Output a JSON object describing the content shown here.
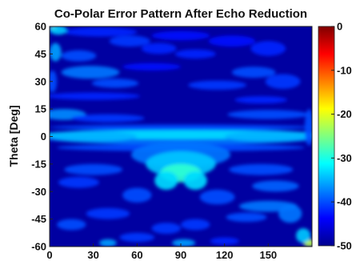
{
  "chart_data": {
    "type": "heatmap",
    "title": "Co-Polar Error Pattern After Echo Reduction",
    "xlabel": "",
    "ylabel": "Theta [Deg]",
    "xlim": [
      0,
      180
    ],
    "ylim": [
      -60,
      60
    ],
    "xticks": [
      "0",
      "30",
      "60",
      "90",
      "120",
      "150"
    ],
    "yticks": [
      "60",
      "45",
      "30",
      "15",
      "0",
      "-15",
      "-30",
      "-45",
      "-60"
    ],
    "colorbar": {
      "min": -50,
      "max": 0,
      "ticks": [
        "0",
        "-10",
        "-20",
        "-30",
        "-40",
        "-50"
      ],
      "colormap": [
        "#00008f",
        "#0000ff",
        "#00ffff",
        "#ffff00",
        "#ff0000",
        "#800000"
      ]
    },
    "background_db": -49,
    "features": [
      {
        "name": "horizontal band near theta 0",
        "x": [
          0,
          180
        ],
        "y": 0,
        "db": -33
      },
      {
        "name": "peak near x 90 theta -20",
        "x": 90,
        "y": -20,
        "db": -28
      },
      {
        "name": "hotspot lower-right corner",
        "x": 178,
        "y": -58,
        "db": -20
      },
      {
        "name": "hotspot upper-left corner",
        "x": 2,
        "y": 59,
        "db": -22
      }
    ]
  }
}
